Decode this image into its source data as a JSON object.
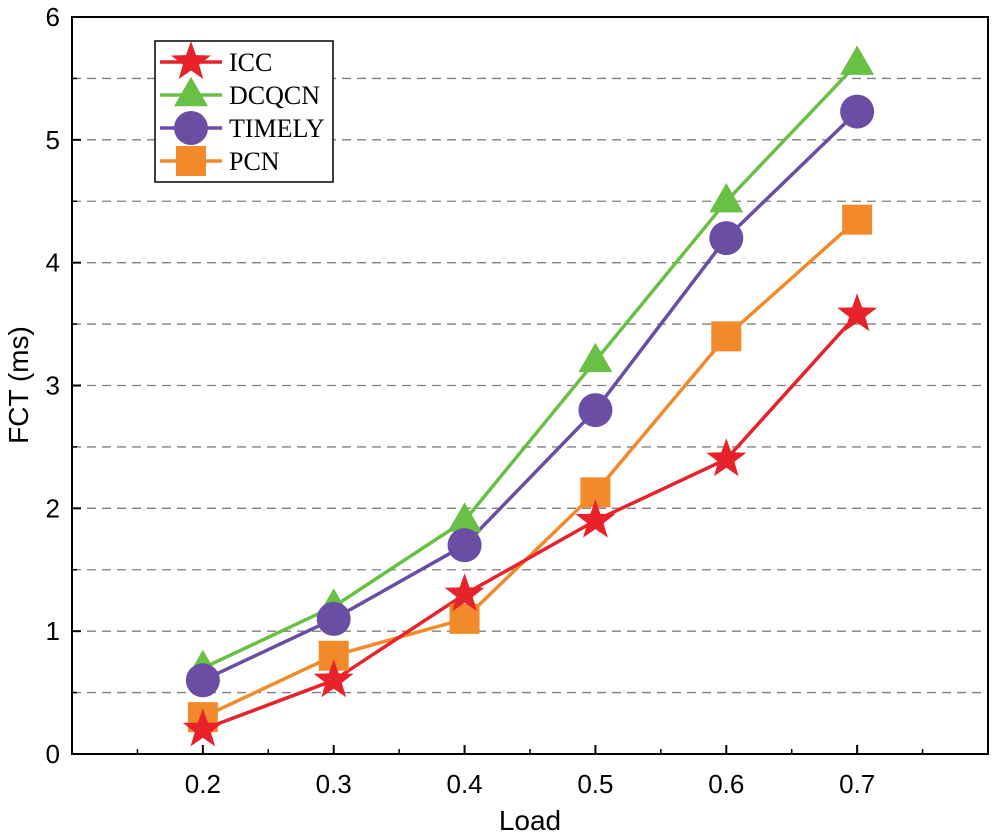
{
  "chart_data": {
    "type": "line",
    "title": "",
    "xlabel": "Load",
    "ylabel": "FCT (ms)",
    "x": [
      0.2,
      0.3,
      0.4,
      0.5,
      0.6,
      0.7
    ],
    "x_tick_labels": [
      "0.2",
      "0.3",
      "0.4",
      "0.5",
      "0.6",
      "0.7"
    ],
    "y_tick_labels": [
      "0",
      "1",
      "2",
      "3",
      "4",
      "5",
      "6"
    ],
    "xlim": [
      0.1,
      0.8
    ],
    "ylim": [
      0,
      6
    ],
    "grid": "horizontal dashed at 0.5 steps",
    "legend_position": "top-left",
    "series": [
      {
        "name": "ICC",
        "marker": "star",
        "color": "#e8222b",
        "values": [
          0.2,
          0.6,
          1.3,
          1.9,
          2.4,
          3.58
        ]
      },
      {
        "name": "DCQCN",
        "marker": "triangle",
        "color": "#6abf45",
        "values": [
          0.7,
          1.2,
          1.9,
          3.2,
          4.5,
          5.62
        ]
      },
      {
        "name": "TIMELY",
        "marker": "circle",
        "color": "#6a4ea3",
        "values": [
          0.6,
          1.1,
          1.7,
          2.8,
          4.2,
          5.23
        ]
      },
      {
        "name": "PCN",
        "marker": "square",
        "color": "#f28a2b",
        "values": [
          0.3,
          0.8,
          1.1,
          2.13,
          3.4,
          4.35
        ]
      }
    ]
  }
}
